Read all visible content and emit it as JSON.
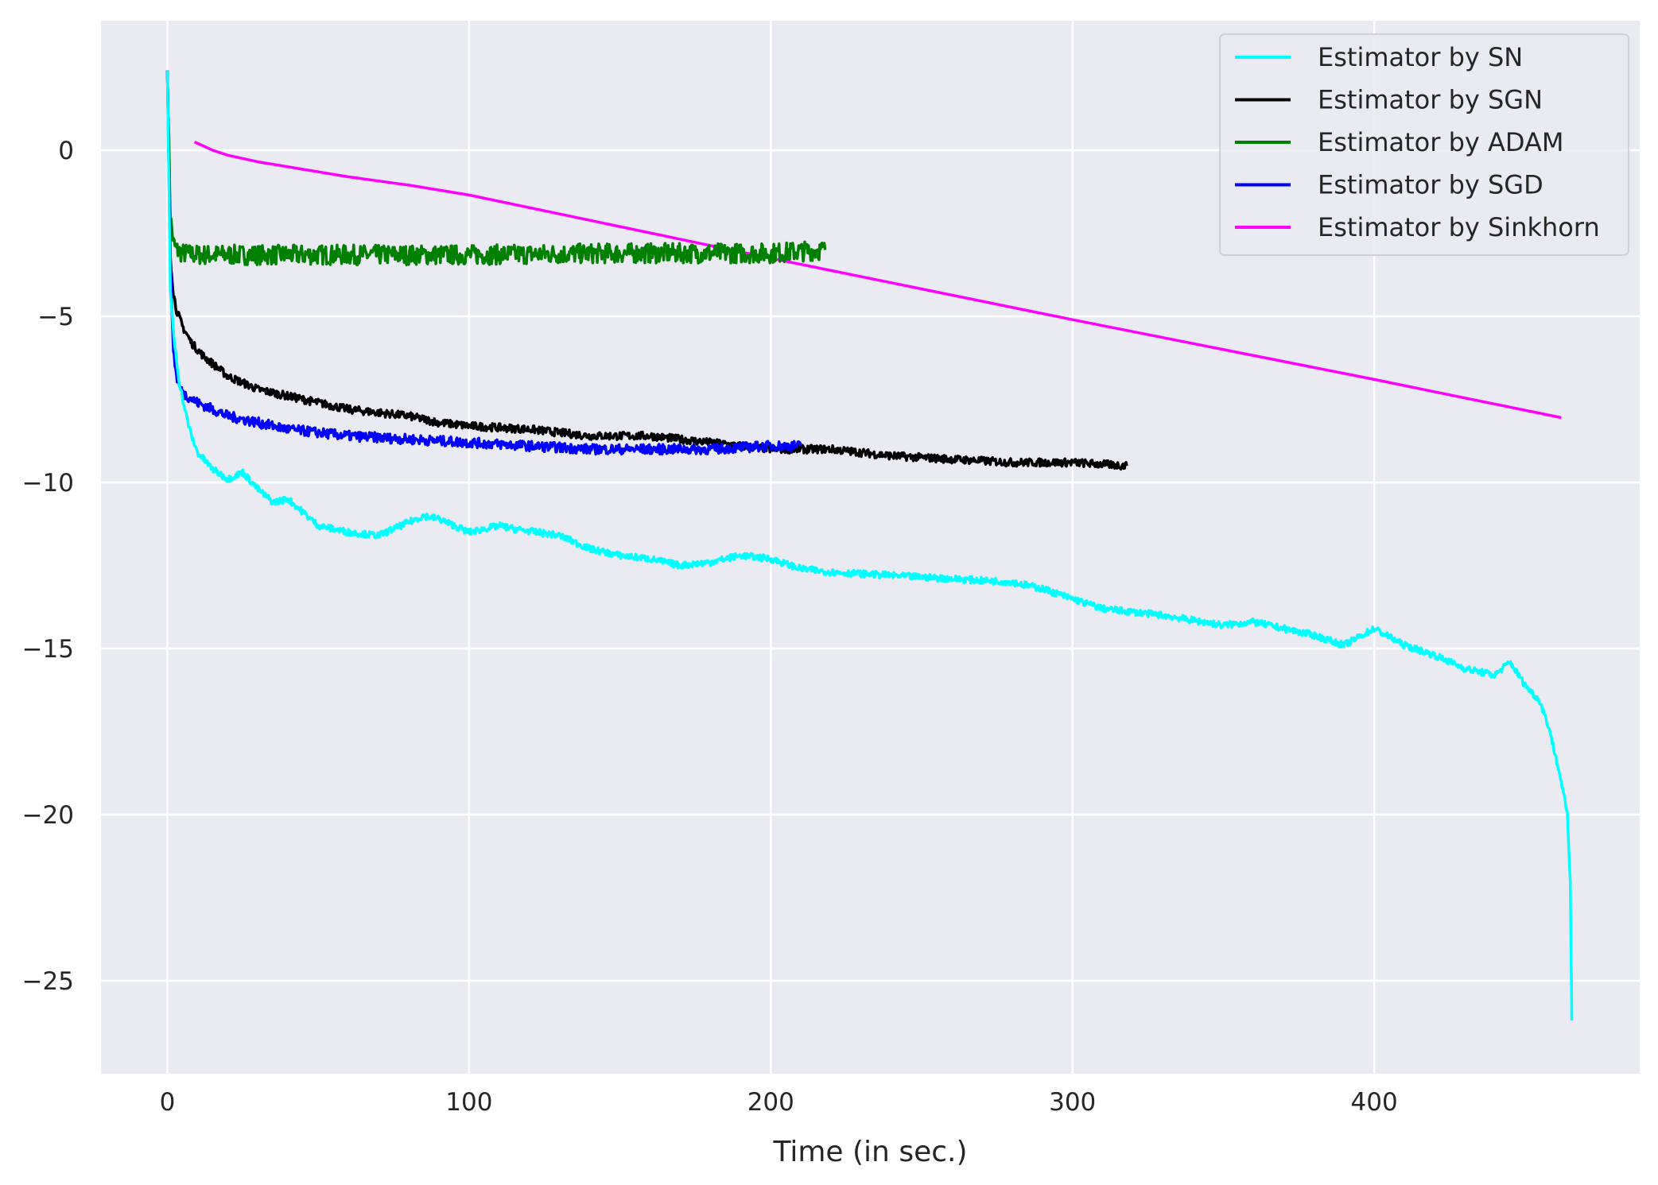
{
  "chart_data": {
    "type": "line",
    "title": "",
    "xlabel": "Time (in sec.)",
    "ylabel": "",
    "xlim": [
      -22,
      488
    ],
    "ylim": [
      -27.8,
      3.9
    ],
    "xticks": [
      0,
      100,
      200,
      300,
      400
    ],
    "yticks": [
      0,
      -5,
      -10,
      -15,
      -20,
      -25
    ],
    "ytick_labels": [
      "0",
      "−5",
      "−10",
      "−15",
      "−20",
      "−25"
    ],
    "grid": true,
    "background": "#eaeaf2",
    "legend_position": "top-right",
    "series": [
      {
        "name": "Estimator by SN",
        "color": "#00ffff",
        "noise": 0.1,
        "x": [
          0,
          1,
          2,
          3,
          4,
          6,
          8,
          10,
          15,
          20,
          25,
          30,
          35,
          40,
          45,
          50,
          55,
          60,
          70,
          80,
          85,
          90,
          100,
          110,
          115,
          130,
          140,
          150,
          160,
          170,
          180,
          190,
          200,
          210,
          220,
          240,
          260,
          280,
          290,
          300,
          310,
          330,
          350,
          360,
          380,
          390,
          400,
          410,
          420,
          430,
          440,
          445,
          450,
          455,
          458,
          460,
          462,
          464,
          465,
          465.5
        ],
        "y": [
          2.4,
          -4.2,
          -5.5,
          -6.3,
          -7.0,
          -7.9,
          -8.6,
          -9.1,
          -9.6,
          -9.9,
          -9.7,
          -10.2,
          -10.6,
          -10.5,
          -10.9,
          -11.3,
          -11.4,
          -11.5,
          -11.6,
          -11.2,
          -11.0,
          -11.1,
          -11.5,
          -11.3,
          -11.4,
          -11.6,
          -12.0,
          -12.2,
          -12.3,
          -12.5,
          -12.4,
          -12.2,
          -12.3,
          -12.6,
          -12.7,
          -12.8,
          -12.9,
          -13.0,
          -13.2,
          -13.5,
          -13.8,
          -14.0,
          -14.3,
          -14.2,
          -14.6,
          -14.9,
          -14.4,
          -14.9,
          -15.2,
          -15.6,
          -15.8,
          -15.4,
          -16.1,
          -16.6,
          -17.4,
          -18.2,
          -19.0,
          -20.0,
          -22.0,
          -26.2
        ]
      },
      {
        "name": "Estimator by SGN",
        "color": "#000000",
        "noise": 0.12,
        "x": [
          0,
          1,
          2,
          3,
          5,
          8,
          12,
          20,
          30,
          40,
          50,
          60,
          70,
          80,
          90,
          100,
          120,
          140,
          160,
          180,
          200,
          220,
          240,
          260,
          280,
          300,
          318
        ],
        "y": [
          2.4,
          -3.2,
          -4.3,
          -4.8,
          -5.3,
          -5.8,
          -6.2,
          -6.8,
          -7.2,
          -7.4,
          -7.6,
          -7.8,
          -7.9,
          -8.0,
          -8.2,
          -8.3,
          -8.4,
          -8.6,
          -8.6,
          -8.8,
          -9.0,
          -9.0,
          -9.2,
          -9.3,
          -9.4,
          -9.4,
          -9.5
        ]
      },
      {
        "name": "Estimator by ADAM",
        "color": "#008000",
        "noise": 0.3,
        "x": [
          0,
          1,
          2,
          3,
          5,
          10,
          50,
          100,
          150,
          200,
          218
        ],
        "y": [
          2.4,
          -2.0,
          -2.8,
          -3.0,
          -3.1,
          -3.15,
          -3.15,
          -3.15,
          -3.1,
          -3.1,
          -3.0
        ]
      },
      {
        "name": "Estimator by SGD",
        "color": "#0000ff",
        "noise": 0.15,
        "x": [
          0,
          1,
          2,
          3,
          4,
          5,
          10,
          20,
          30,
          40,
          50,
          60,
          80,
          100,
          120,
          140,
          160,
          180,
          200,
          210
        ],
        "y": [
          2.4,
          -3.5,
          -6.0,
          -6.8,
          -7.1,
          -7.3,
          -7.6,
          -8.0,
          -8.2,
          -8.4,
          -8.5,
          -8.6,
          -8.7,
          -8.8,
          -8.9,
          -9.0,
          -9.0,
          -9.0,
          -8.9,
          -8.9
        ]
      },
      {
        "name": "Estimator by Sinkhorn",
        "color": "#ff00ff",
        "noise": 0,
        "x": [
          9,
          15,
          20,
          30,
          40,
          60,
          80,
          100,
          150,
          200,
          300,
          400,
          462
        ],
        "y": [
          0.25,
          0.0,
          -0.15,
          -0.35,
          -0.5,
          -0.8,
          -1.05,
          -1.35,
          -2.3,
          -3.25,
          -5.1,
          -6.9,
          -8.05
        ]
      }
    ]
  }
}
